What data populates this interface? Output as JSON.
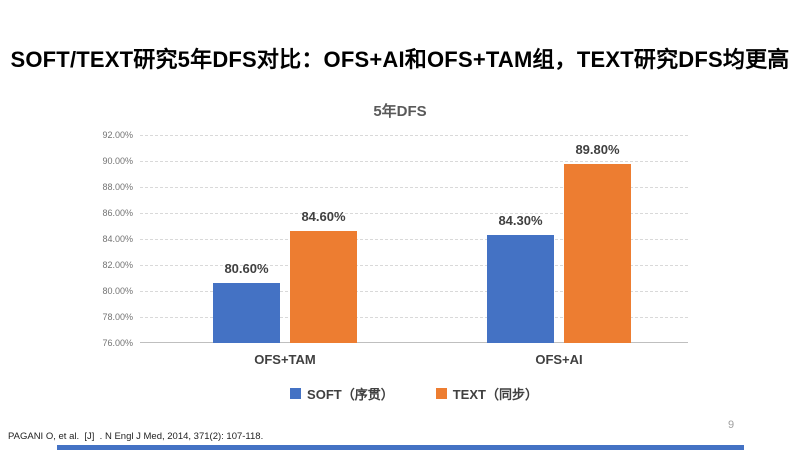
{
  "slide": {
    "title": "SOFT/TEXT研究5年DFS对比：OFS+AI和OFS+TAM组，TEXT研究DFS均更高",
    "footer_citation": "PAGANI O, et al.  [J]  . N Engl J Med, 2014, 371(2): 107-118.",
    "page_number": "9",
    "accent_bar_color": "#4472C4"
  },
  "chart_data": {
    "type": "bar",
    "title": "5年DFS",
    "categories": [
      "OFS+TAM",
      "OFS+AI"
    ],
    "series": [
      {
        "name": "SOFT（序贯）",
        "color": "#4472C4",
        "values": [
          80.6,
          84.3
        ],
        "labels": [
          "80.60%",
          "84.30%"
        ]
      },
      {
        "name": "TEXT（同步）",
        "color": "#ED7D31",
        "values": [
          84.6,
          89.8
        ],
        "labels": [
          "84.60%",
          "89.80%"
        ]
      }
    ],
    "ylim": [
      76,
      92
    ],
    "ytick_step": 2,
    "yticks": [
      "92.00%",
      "90.00%",
      "88.00%",
      "86.00%",
      "84.00%",
      "82.00%",
      "80.00%",
      "78.00%",
      "76.00%"
    ],
    "grid": true,
    "gridline_color": "#d9d9d9",
    "legend_position": "bottom"
  }
}
